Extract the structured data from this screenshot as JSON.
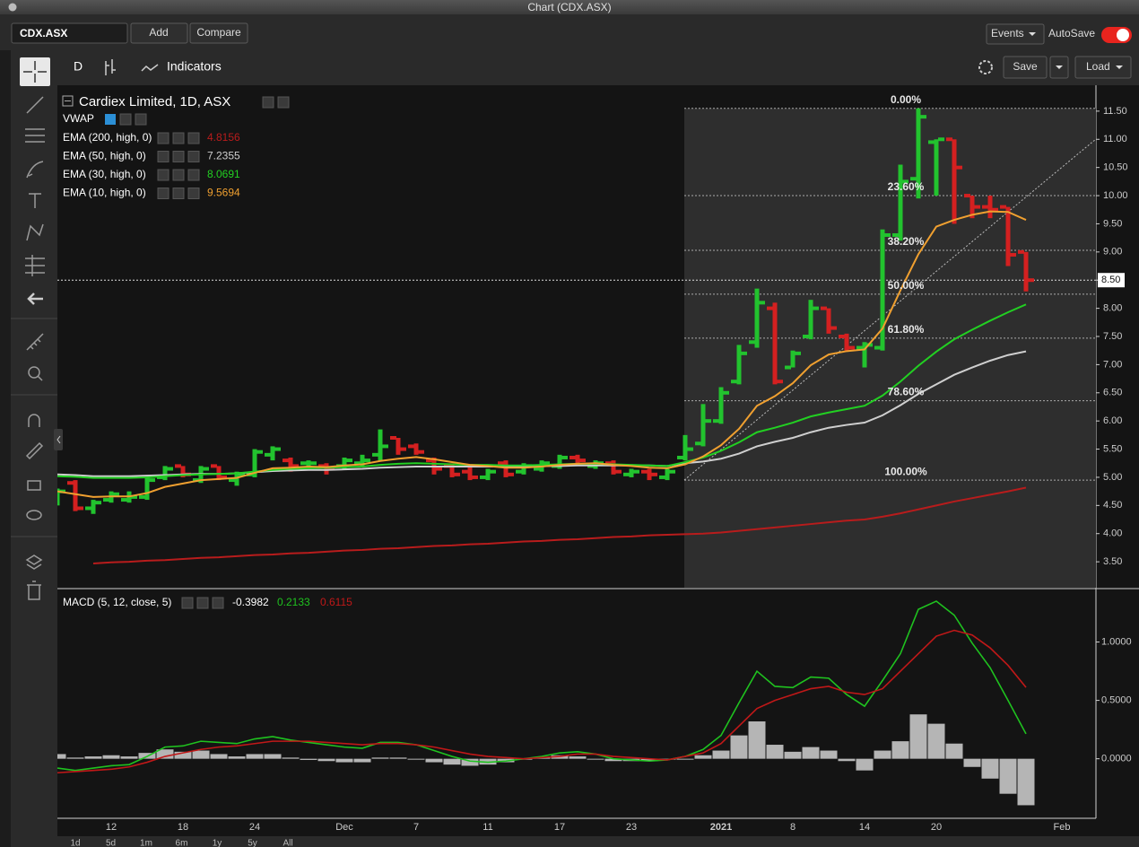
{
  "window_title": "Chart (CDX.ASX)",
  "toolbar": {
    "symbol": "CDX.ASX",
    "add": "Add",
    "compare": "Compare",
    "events": "Events",
    "autosave": "AutoSave",
    "interval": "D",
    "indicators": "Indicators",
    "save": "Save",
    "load": "Load"
  },
  "periods": [
    "1d",
    "5d",
    "1m",
    "6m",
    "1y",
    "5y",
    "All"
  ],
  "chart_data": [
    {
      "type": "ohlc",
      "title": "Cardiex Limited, 1D, ASX",
      "categories": [
        null,
        null,
        null,
        "12",
        null,
        null,
        null,
        "18",
        null,
        null,
        null,
        "24",
        null,
        null,
        null,
        null,
        "Dec",
        null,
        null,
        null,
        "7",
        null,
        null,
        null,
        "11",
        null,
        null,
        null,
        "17",
        null,
        null,
        null,
        "23",
        null,
        null,
        null,
        null,
        "2021",
        null,
        null,
        null,
        "8",
        null,
        null,
        null,
        "14",
        null,
        null,
        null,
        "20",
        null,
        null,
        null,
        null,
        null,
        null,
        "Feb"
      ],
      "open": [
        4.55,
        4.9,
        4.45,
        4.6,
        4.6,
        4.65,
        5.0,
        5.2,
        4.95,
        5.2,
        4.95,
        5.05,
        5.4,
        5.3,
        5.25,
        5.2,
        5.2,
        5.25,
        5.4,
        5.7,
        5.55,
        5.3,
        5.2,
        5.1,
        5.0,
        5.25,
        5.1,
        5.15,
        5.2,
        5.35,
        5.2,
        5.25,
        5.05,
        5.1,
        5.0,
        5.35,
        5.6,
        6.0,
        6.7,
        7.4,
        8.0,
        6.95,
        7.5,
        8.0,
        7.5,
        7.3,
        7.3,
        9.3,
        10.3,
        10.95,
        11.0,
        10.0,
        9.8,
        9.8,
        9.0,
        null,
        null
      ],
      "high": [
        4.8,
        4.95,
        4.6,
        4.75,
        4.75,
        5.0,
        5.2,
        5.2,
        5.2,
        5.2,
        5.1,
        5.5,
        5.55,
        5.35,
        5.3,
        5.25,
        5.35,
        5.4,
        5.85,
        5.7,
        5.6,
        5.35,
        5.25,
        5.2,
        5.15,
        5.3,
        5.25,
        5.3,
        5.4,
        5.4,
        5.3,
        5.3,
        5.15,
        5.15,
        5.15,
        5.75,
        6.3,
        6.6,
        7.35,
        8.35,
        8.1,
        7.25,
        8.15,
        8.0,
        7.55,
        7.4,
        9.4,
        10.55,
        11.55,
        11.0,
        11.0,
        10.0,
        10.0,
        9.8,
        9.0,
        null,
        null
      ],
      "low": [
        4.5,
        4.4,
        4.35,
        4.55,
        4.55,
        4.6,
        4.95,
        5.0,
        4.9,
        4.95,
        4.85,
        5.0,
        5.3,
        5.1,
        5.15,
        5.05,
        5.15,
        5.2,
        5.3,
        5.4,
        5.4,
        5.05,
        5.0,
        4.95,
        4.95,
        5.0,
        5.05,
        5.1,
        5.15,
        5.2,
        5.15,
        5.05,
        5.0,
        4.95,
        4.95,
        5.3,
        5.55,
        5.95,
        6.65,
        7.3,
        6.65,
        6.95,
        7.45,
        7.55,
        7.25,
        6.95,
        7.25,
        9.2,
        9.95,
        10.0,
        9.5,
        9.6,
        9.6,
        8.75,
        8.3,
        null,
        null
      ],
      "close": [
        4.75,
        4.45,
        4.55,
        4.7,
        4.65,
        4.95,
        5.15,
        5.05,
        5.15,
        5.0,
        5.05,
        5.45,
        5.5,
        5.2,
        5.25,
        5.15,
        5.3,
        5.3,
        5.55,
        5.5,
        5.45,
        5.15,
        5.05,
        5.0,
        5.1,
        5.05,
        5.2,
        5.25,
        5.35,
        5.3,
        5.25,
        5.1,
        5.1,
        5.05,
        5.1,
        5.5,
        6.0,
        6.5,
        7.2,
        8.1,
        6.7,
        7.2,
        8.0,
        7.65,
        7.3,
        7.35,
        9.3,
        10.25,
        11.4,
        11.0,
        10.5,
        9.8,
        9.75,
        8.95,
        8.5,
        null,
        null
      ],
      "up_color": "#22c32e",
      "down_color": "#d42020",
      "ylim": [
        3.04,
        11.96
      ],
      "yticks": [
        {
          "value": 3.5,
          "label": "3.50"
        },
        {
          "value": 4,
          "label": "4.00"
        },
        {
          "value": 4.5,
          "label": "4.50"
        },
        {
          "value": 5,
          "label": "5.00"
        },
        {
          "value": 5.5,
          "label": "5.50"
        },
        {
          "value": 6,
          "label": "6.00"
        },
        {
          "value": 6.5,
          "label": "6.50"
        },
        {
          "value": 7,
          "label": "7.00"
        },
        {
          "value": 7.5,
          "label": "7.50"
        },
        {
          "value": 8,
          "label": "8.00"
        },
        {
          "value": 8.5,
          "label": "8.50"
        },
        {
          "value": 9,
          "label": "9.00"
        },
        {
          "value": 9.5,
          "label": "9.50"
        },
        {
          "value": 10,
          "label": "10.00"
        },
        {
          "value": 10.5,
          "label": "10.50"
        },
        {
          "value": 11,
          "label": "11.00"
        },
        {
          "value": 11.5,
          "label": "11.50"
        }
      ],
      "last_price": 8.5,
      "last_price_label": "8.50",
      "overlay": "VWAP",
      "series": [
        {
          "name": "EMA (200, high, 0)",
          "color": "#b81c1c",
          "last": 4.8156,
          "values": [
            null,
            null,
            3.47,
            3.49,
            3.5,
            3.52,
            3.53,
            3.55,
            3.57,
            3.58,
            3.6,
            3.62,
            3.63,
            3.65,
            3.66,
            3.68,
            3.7,
            3.71,
            3.73,
            3.74,
            3.76,
            3.78,
            3.79,
            3.81,
            3.82,
            3.84,
            3.86,
            3.87,
            3.89,
            3.9,
            3.92,
            3.94,
            3.95,
            3.97,
            3.98,
            3.99,
            4.0,
            4.02,
            4.05,
            4.08,
            4.11,
            4.14,
            4.17,
            4.2,
            4.23,
            4.25,
            4.3,
            4.36,
            4.43,
            4.5,
            4.57,
            4.63,
            4.69,
            4.75,
            4.8156,
            null,
            null
          ]
        },
        {
          "name": "EMA (50, high, 0)",
          "color": "#cfcfcf",
          "last": 7.2355,
          "values": [
            5.05,
            5.04,
            5.02,
            5.02,
            5.02,
            5.03,
            5.04,
            5.05,
            5.06,
            5.06,
            5.07,
            5.09,
            5.11,
            5.12,
            5.13,
            5.13,
            5.14,
            5.15,
            5.17,
            5.18,
            5.19,
            5.19,
            5.19,
            5.19,
            5.19,
            5.19,
            5.19,
            5.2,
            5.2,
            5.21,
            5.21,
            5.21,
            5.21,
            5.21,
            5.2,
            5.25,
            5.28,
            5.33,
            5.42,
            5.55,
            5.63,
            5.7,
            5.8,
            5.88,
            5.93,
            5.97,
            6.1,
            6.28,
            6.48,
            6.65,
            6.82,
            6.95,
            7.07,
            7.17,
            7.2355,
            null,
            null
          ]
        },
        {
          "name": "EMA (30, high, 0)",
          "color": "#22d022",
          "last": 8.0691,
          "values": [
            5.02,
            5.01,
            4.99,
            4.99,
            4.99,
            5.0,
            5.02,
            5.04,
            5.05,
            5.06,
            5.07,
            5.1,
            5.13,
            5.15,
            5.16,
            5.17,
            5.18,
            5.19,
            5.22,
            5.24,
            5.25,
            5.24,
            5.23,
            5.22,
            5.22,
            5.21,
            5.21,
            5.22,
            5.23,
            5.24,
            5.24,
            5.23,
            5.22,
            5.21,
            5.2,
            5.27,
            5.35,
            5.47,
            5.62,
            5.8,
            5.88,
            5.97,
            6.08,
            6.15,
            6.21,
            6.27,
            6.45,
            6.7,
            6.98,
            7.23,
            7.45,
            7.62,
            7.78,
            7.93,
            8.0691,
            null,
            null
          ]
        },
        {
          "name": "EMA (10, high, 0)",
          "color": "#f0a030",
          "last": 9.5694,
          "values": [
            4.75,
            4.7,
            4.65,
            4.66,
            4.66,
            4.72,
            4.83,
            4.89,
            4.95,
            4.97,
            4.99,
            5.08,
            5.16,
            5.17,
            5.19,
            5.18,
            5.21,
            5.23,
            5.29,
            5.33,
            5.36,
            5.32,
            5.27,
            5.22,
            5.2,
            5.17,
            5.17,
            5.19,
            5.22,
            5.24,
            5.25,
            5.22,
            5.2,
            5.17,
            5.16,
            5.23,
            5.37,
            5.57,
            5.86,
            6.27,
            6.44,
            6.67,
            6.99,
            7.18,
            7.24,
            7.27,
            7.64,
            8.32,
            8.96,
            9.45,
            9.57,
            9.66,
            9.72,
            9.71,
            9.5694,
            null,
            null
          ]
        }
      ],
      "fibonacci": {
        "labels": [
          "0.00%",
          "23.60%",
          "38.20%",
          "50.00%",
          "61.80%",
          "78.60%",
          "100.00%"
        ],
        "prices": [
          11.55,
          10.0,
          9.03,
          8.25,
          7.47,
          6.36,
          4.95
        ]
      }
    },
    {
      "type": "macd",
      "title": "MACD (5, 12, close, 5)",
      "ylim": [
        -0.51,
        1.45
      ],
      "yticks": [
        {
          "value": 0,
          "label": "0.0000"
        },
        {
          "value": 0.5,
          "label": "0.5000"
        },
        {
          "value": 1,
          "label": "1.0000"
        }
      ],
      "histogram": {
        "color": "#b5b5b5",
        "last": -0.3982,
        "values": [
          0.04,
          0.01,
          0.02,
          0.03,
          0.02,
          0.05,
          0.08,
          0.06,
          0.07,
          0.04,
          0.02,
          0.04,
          0.04,
          0.01,
          -0.01,
          -0.02,
          -0.03,
          -0.03,
          0.01,
          0.01,
          0.0,
          -0.03,
          -0.05,
          -0.06,
          -0.05,
          -0.03,
          0.0,
          0.01,
          0.03,
          0.02,
          0.0,
          -0.02,
          -0.02,
          -0.02,
          0.0,
          0.0,
          0.03,
          0.07,
          0.2,
          0.32,
          0.12,
          0.06,
          0.1,
          0.07,
          -0.02,
          -0.1,
          0.07,
          0.15,
          0.38,
          0.3,
          0.13,
          -0.07,
          -0.17,
          -0.3,
          -0.3982,
          null,
          null
        ]
      },
      "series": [
        {
          "color": "#1fc21f",
          "last": 0.2133,
          "values": [
            -0.08,
            -0.1,
            -0.08,
            -0.06,
            -0.05,
            0.02,
            0.1,
            0.11,
            0.15,
            0.14,
            0.13,
            0.17,
            0.19,
            0.16,
            0.14,
            0.12,
            0.1,
            0.09,
            0.14,
            0.14,
            0.12,
            0.07,
            0.02,
            -0.02,
            -0.03,
            -0.02,
            0.0,
            0.02,
            0.05,
            0.06,
            0.04,
            0.0,
            -0.01,
            -0.02,
            -0.01,
            0.02,
            0.08,
            0.2,
            0.48,
            0.75,
            0.62,
            0.61,
            0.7,
            0.69,
            0.55,
            0.45,
            0.67,
            0.9,
            1.28,
            1.35,
            1.23,
            0.99,
            0.78,
            0.5,
            0.2133,
            null,
            null
          ]
        },
        {
          "color": "#c01818",
          "last": 0.6115,
          "values": [
            -0.12,
            -0.11,
            -0.1,
            -0.09,
            -0.07,
            -0.03,
            0.02,
            0.05,
            0.08,
            0.1,
            0.11,
            0.13,
            0.15,
            0.15,
            0.15,
            0.14,
            0.13,
            0.12,
            0.13,
            0.13,
            0.12,
            0.1,
            0.07,
            0.04,
            0.02,
            0.01,
            0.0,
            0.01,
            0.02,
            0.04,
            0.04,
            0.02,
            0.01,
            0.0,
            -0.01,
            0.02,
            0.05,
            0.13,
            0.28,
            0.43,
            0.5,
            0.55,
            0.6,
            0.62,
            0.57,
            0.55,
            0.6,
            0.75,
            0.9,
            1.05,
            1.1,
            1.06,
            0.95,
            0.8,
            0.6115,
            null,
            null
          ]
        }
      ]
    }
  ]
}
